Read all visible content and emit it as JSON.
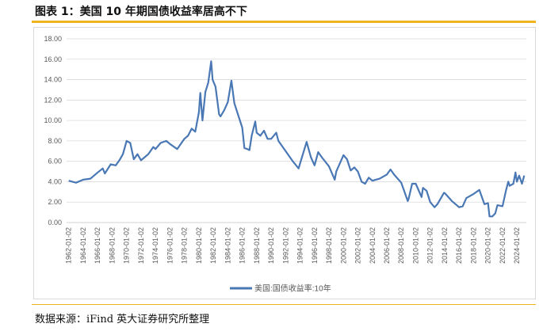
{
  "title": "图表 1：美国 10 年期国债收益率居高不下",
  "source": "数据来源：iFind   英大证券研究所整理",
  "colors": {
    "line": "#4a78b5",
    "accent": "#f0b51e",
    "grid": "#d9d9d9",
    "tick": "#595959"
  },
  "chart_data": {
    "type": "line",
    "title": "",
    "xlabel": "",
    "ylabel": "",
    "ylim": [
      0,
      18
    ],
    "yticks": [
      "0.00",
      "2.00",
      "4.00",
      "6.00",
      "8.00",
      "10.00",
      "12.00",
      "14.00",
      "16.00",
      "18.00"
    ],
    "xticks": [
      "1962-01-02",
      "1964-01-02",
      "1966-01-02",
      "1968-01-02",
      "1970-01-02",
      "1972-01-02",
      "1974-01-02",
      "1976-01-02",
      "1978-01-02",
      "1980-01-02",
      "1982-01-02",
      "1984-01-02",
      "1986-01-02",
      "1988-01-02",
      "1990-01-02",
      "1992-01-02",
      "1994-01-02",
      "1996-01-02",
      "1998-01-02",
      "2000-01-02",
      "2002-01-02",
      "2004-01-02",
      "2006-01-02",
      "2008-01-02",
      "2010-01-02",
      "2012-01-02",
      "2014-01-02",
      "2016-01-02",
      "2018-01-02",
      "2020-01-02",
      "2022-01-02",
      "2024-01-02"
    ],
    "grid": "horizontal",
    "legend": "bottom-center",
    "series": [
      {
        "name": "美国:国债收益率:10年",
        "x": [
          1962.0,
          1963.0,
          1964.0,
          1965.0,
          1966.0,
          1966.7,
          1967.0,
          1967.8,
          1968.5,
          1969.0,
          1969.5,
          1970.0,
          1970.5,
          1971.0,
          1971.5,
          1972.0,
          1973.0,
          1973.7,
          1974.0,
          1974.7,
          1975.5,
          1976.0,
          1977.0,
          1978.0,
          1978.5,
          1979.0,
          1979.5,
          1980.0,
          1980.2,
          1980.5,
          1980.9,
          1981.3,
          1981.7,
          1981.9,
          1982.3,
          1982.8,
          1983.0,
          1983.5,
          1984.0,
          1984.5,
          1984.9,
          1985.5,
          1986.0,
          1986.3,
          1986.7,
          1987.0,
          1987.3,
          1987.8,
          1988.0,
          1988.5,
          1989.0,
          1989.5,
          1990.0,
          1990.7,
          1991.0,
          1992.0,
          1993.0,
          1993.8,
          1994.0,
          1994.9,
          1995.5,
          1996.0,
          1996.5,
          1997.0,
          1998.0,
          1998.8,
          1999.0,
          2000.0,
          2000.5,
          2001.0,
          2001.5,
          2002.0,
          2002.5,
          2003.0,
          2003.5,
          2004.0,
          2005.0,
          2006.0,
          2006.5,
          2007.0,
          2008.0,
          2008.9,
          2009.0,
          2009.5,
          2010.0,
          2010.8,
          2011.0,
          2011.5,
          2012.0,
          2012.6,
          2013.0,
          2013.9,
          2014.0,
          2015.0,
          2016.0,
          2016.5,
          2017.0,
          2018.0,
          2018.8,
          2019.0,
          2019.5,
          2020.0,
          2020.2,
          2020.6,
          2021.0,
          2021.3,
          2022.0,
          2022.5,
          2022.8,
          2023.0,
          2023.5,
          2023.8,
          2024.0,
          2024.3,
          2024.7,
          2025.0
        ],
        "values": [
          4.1,
          3.9,
          4.2,
          4.3,
          4.9,
          5.3,
          4.8,
          5.7,
          5.6,
          6.1,
          6.7,
          8.0,
          7.8,
          6.2,
          6.7,
          6.1,
          6.7,
          7.4,
          7.2,
          7.8,
          8.0,
          7.7,
          7.2,
          8.2,
          8.5,
          9.2,
          8.9,
          10.8,
          12.7,
          10.0,
          12.8,
          13.7,
          15.8,
          14.0,
          13.3,
          10.6,
          10.4,
          11.0,
          11.8,
          13.9,
          11.7,
          10.4,
          9.3,
          7.3,
          7.2,
          7.1,
          8.5,
          9.9,
          8.8,
          8.5,
          9.0,
          8.2,
          8.2,
          8.8,
          8.0,
          7.0,
          6.0,
          5.3,
          5.8,
          7.9,
          6.4,
          5.6,
          6.9,
          6.4,
          5.5,
          4.2,
          5.0,
          6.6,
          6.2,
          5.1,
          5.4,
          5.0,
          4.0,
          3.8,
          4.4,
          4.1,
          4.3,
          4.7,
          5.2,
          4.7,
          3.9,
          2.1,
          2.3,
          3.8,
          3.8,
          2.5,
          3.4,
          3.1,
          2.0,
          1.5,
          1.8,
          2.9,
          2.9,
          2.1,
          1.5,
          1.6,
          2.4,
          2.8,
          3.2,
          2.8,
          1.8,
          1.9,
          0.6,
          0.6,
          0.9,
          1.7,
          1.6,
          3.2,
          4.0,
          3.6,
          3.8,
          4.9,
          4.0,
          4.6,
          3.8,
          4.6
        ]
      }
    ]
  }
}
